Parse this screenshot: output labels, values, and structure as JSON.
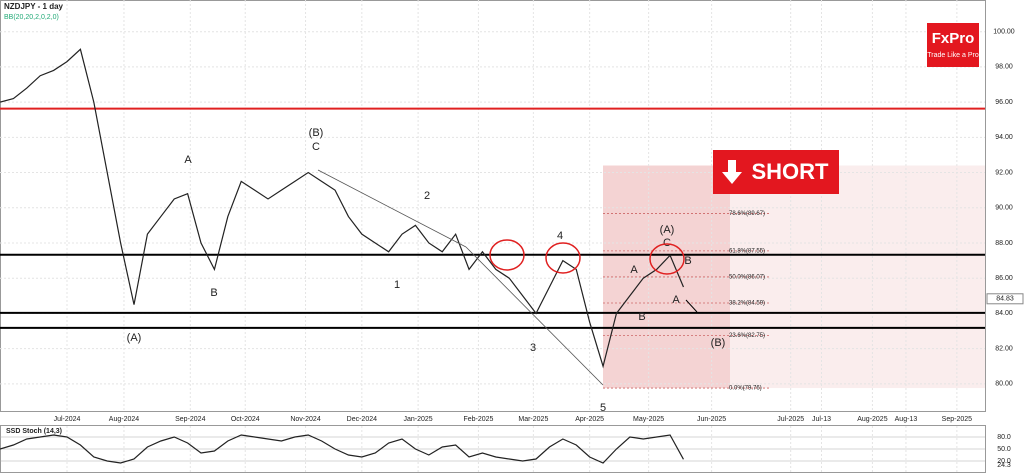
{
  "chart_data": [
    {
      "type": "line",
      "title": "NZDJPY - 1 day",
      "subtitle": "BB(20,20,2,0,2,0)",
      "x": [
        0,
        1,
        2,
        3,
        4,
        5,
        6,
        7,
        8,
        9,
        10,
        11,
        12,
        13,
        14,
        15,
        16,
        17,
        18,
        19,
        20,
        21,
        22,
        23,
        24,
        25,
        26,
        27,
        28,
        29,
        30,
        31,
        32,
        33,
        34,
        35,
        36,
        37,
        38,
        39,
        40,
        41,
        42,
        43,
        44,
        45,
        46,
        47,
        48,
        49,
        50,
        51
      ],
      "values": [
        96.0,
        96.2,
        96.8,
        97.5,
        97.8,
        98.3,
        99.0,
        96.0,
        92.0,
        88.0,
        84.5,
        88.5,
        89.5,
        90.5,
        90.8,
        88.0,
        86.5,
        89.5,
        91.5,
        91.0,
        90.5,
        91.0,
        91.5,
        92.0,
        91.5,
        91.0,
        89.5,
        88.5,
        88.0,
        87.5,
        88.5,
        89.0,
        88.0,
        87.5,
        88.5,
        86.5,
        87.5,
        86.5,
        86.0,
        85.0,
        84.0,
        85.5,
        87.0,
        86.5,
        83.5,
        81.0,
        84.0,
        85.0,
        86.0,
        86.5,
        87.3,
        85.5
      ],
      "color": "#222222",
      "xlim": [
        0,
        73.5
      ],
      "xticks": [
        {
          "value": 5.0,
          "label": "Jul-2024"
        },
        {
          "value": 9.25,
          "label": "Aug-2024"
        },
        {
          "value": 14.2,
          "label": "Sep-2024"
        },
        {
          "value": 18.3,
          "label": "Oct-2024"
        },
        {
          "value": 22.8,
          "label": "Nov-2024"
        },
        {
          "value": 27.0,
          "label": "Dec-2024"
        },
        {
          "value": 31.2,
          "label": "Jan-2025"
        },
        {
          "value": 35.7,
          "label": "Feb-2025"
        },
        {
          "value": 39.8,
          "label": "Mar-2025"
        },
        {
          "value": 44.0,
          "label": "Apr-2025"
        },
        {
          "value": 48.4,
          "label": "May-2025"
        },
        {
          "value": 53.1,
          "label": "Jun-2025"
        },
        {
          "value": 59.0,
          "label": "Jul-2025"
        },
        {
          "value": 61.3,
          "label": "Jul-13"
        },
        {
          "value": 65.1,
          "label": "Aug-2025"
        },
        {
          "value": 67.6,
          "label": "Aug-13"
        },
        {
          "value": 71.4,
          "label": "Sep-2025"
        }
      ],
      "ylim": [
        78.4,
        101.8
      ],
      "yticks": [
        {
          "value": 80,
          "label": "80.00"
        },
        {
          "value": 82,
          "label": "82.00"
        },
        {
          "value": 84,
          "label": "84.00"
        },
        {
          "value": 86,
          "label": "86.00"
        },
        {
          "value": 88,
          "label": "88.00"
        },
        {
          "value": 90,
          "label": "90.00"
        },
        {
          "value": 92,
          "label": "92.00"
        },
        {
          "value": 94,
          "label": "94.00"
        },
        {
          "value": 96,
          "label": "96.00"
        },
        {
          "value": 98,
          "label": "98.00"
        },
        {
          "value": 100,
          "label": "100.00"
        }
      ],
      "last_price": 84.83,
      "levels": [
        {
          "value": 95.63,
          "color": "#e02020"
        },
        {
          "value": 87.33,
          "color": "#000000"
        },
        {
          "value": 84.03,
          "color": "#000000"
        },
        {
          "value": 83.18,
          "color": "#000000"
        }
      ],
      "fib_levels": [
        {
          "value": 89.67,
          "label": "78.6%(89.67)"
        },
        {
          "value": 87.55,
          "label": "61.8%(87.55)"
        },
        {
          "value": 86.07,
          "label": "50.0%(86.07)"
        },
        {
          "value": 84.59,
          "label": "38.2%(84.59)"
        },
        {
          "value": 82.75,
          "label": "23.6%(82.75)"
        },
        {
          "value": 79.76,
          "label": "0.0%(79.76)"
        }
      ],
      "annotations": [
        "(B)",
        "C",
        "A",
        "B",
        "(A)",
        "2",
        "1",
        "4",
        "3",
        "5",
        "(A)",
        "C",
        "B",
        "A",
        "B",
        "A",
        "(B)"
      ],
      "signal": "SHORT",
      "brand": {
        "name": "FxPro",
        "tagline": "Trade Like a Pro"
      }
    },
    {
      "type": "line",
      "title": "SSD Stoch (14,3)",
      "x": [
        0,
        1,
        2,
        3,
        4,
        5,
        6,
        7,
        8,
        9,
        10,
        11,
        12,
        13,
        14,
        15,
        16,
        17,
        18,
        19,
        20,
        21,
        22,
        23,
        24,
        25,
        26,
        27,
        28,
        29,
        30,
        31,
        32,
        33,
        34,
        35,
        36,
        37,
        38,
        39,
        40,
        41,
        42,
        43,
        44,
        45,
        46,
        47,
        48,
        49,
        50,
        51
      ],
      "values": [
        50,
        60,
        75,
        80,
        85,
        80,
        60,
        30,
        20,
        15,
        25,
        55,
        70,
        80,
        65,
        40,
        45,
        70,
        85,
        80,
        75,
        70,
        80,
        85,
        70,
        50,
        35,
        30,
        40,
        65,
        75,
        50,
        35,
        55,
        60,
        30,
        40,
        30,
        25,
        20,
        25,
        55,
        75,
        60,
        30,
        15,
        50,
        80,
        75,
        80,
        85,
        24.3
      ],
      "color": "#222222",
      "xlim": [
        0,
        73.5
      ],
      "ylim": [
        0,
        100
      ],
      "yticks": [
        {
          "value": 80,
          "label": "80.0"
        },
        {
          "value": 50,
          "label": "50.0"
        },
        {
          "value": 20,
          "label": "20.0"
        }
      ],
      "last_value": 24.3
    }
  ]
}
